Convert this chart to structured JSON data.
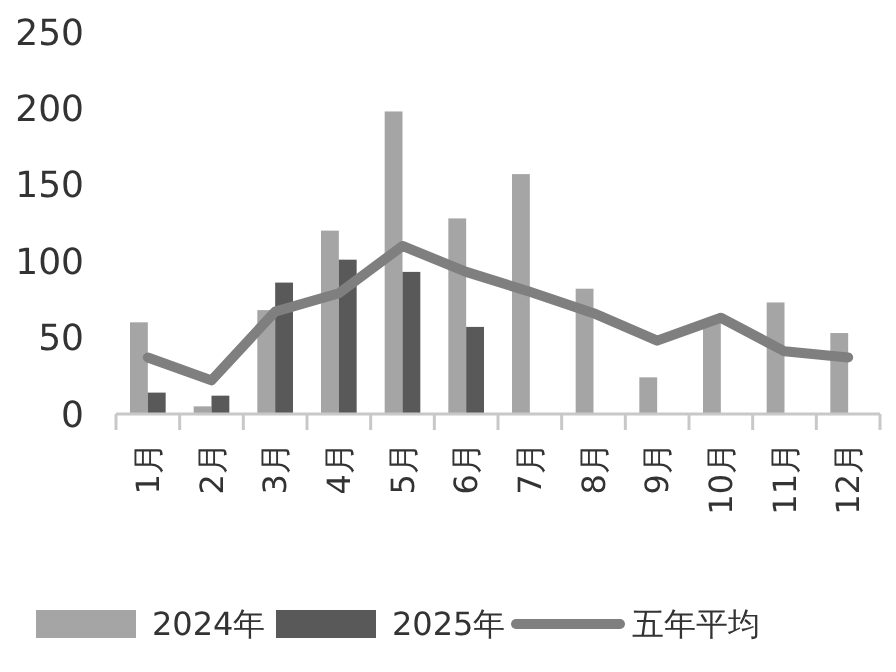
{
  "chart_data": {
    "type": "bar",
    "categories": [
      "1月",
      "2月",
      "3月",
      "4月",
      "5月",
      "6月",
      "7月",
      "8月",
      "9月",
      "10月",
      "11月",
      "12月"
    ],
    "series": [
      {
        "name": "2024年",
        "color": "#a5a5a5",
        "values": [
          60,
          5,
          68,
          120,
          198,
          128,
          157,
          82,
          24,
          62,
          73,
          53
        ]
      },
      {
        "name": "2025年",
        "color": "#595959",
        "values": [
          14,
          12,
          86,
          101,
          93,
          57,
          null,
          null,
          null,
          null,
          null,
          null
        ]
      },
      {
        "name": "五年平均",
        "type": "line",
        "color": "#7f7f7f",
        "values": [
          37,
          22,
          67,
          79,
          110,
          93,
          80,
          66,
          48,
          63,
          41,
          37
        ]
      }
    ],
    "ylim": [
      0,
      250
    ],
    "yticks": [
      0,
      50,
      100,
      150,
      200,
      250
    ],
    "grid": false,
    "legend": "bottom"
  }
}
